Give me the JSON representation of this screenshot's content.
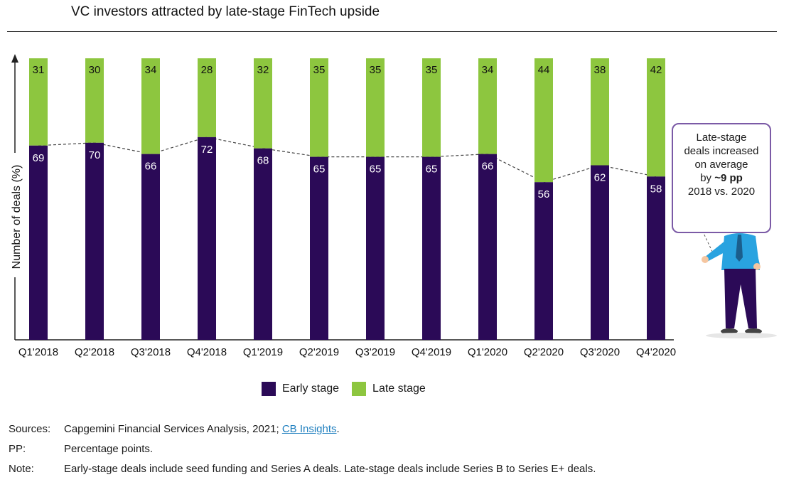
{
  "title": "VC investors attracted by late-stage FinTech upside",
  "chart_data": {
    "type": "bar",
    "stacked": true,
    "categories": [
      "Q1'2018",
      "Q2'2018",
      "Q3'2018",
      "Q4'2018",
      "Q1'2019",
      "Q2'2019",
      "Q3'2019",
      "Q4'2019",
      "Q1'2020",
      "Q2'2020",
      "Q3'2020",
      "Q4'2020"
    ],
    "series": [
      {
        "name": "Early stage",
        "color": "#2b0a57",
        "values": [
          69,
          70,
          66,
          72,
          68,
          65,
          65,
          65,
          66,
          56,
          62,
          58
        ]
      },
      {
        "name": "Late stage",
        "color": "#8dc63f",
        "values": [
          31,
          30,
          34,
          28,
          32,
          35,
          35,
          35,
          34,
          44,
          38,
          42
        ]
      }
    ],
    "ylabel": "Number of deals (%)",
    "ylim": [
      0,
      100
    ],
    "legend_position": "bottom",
    "trend_line": "dashed line connecting top of Early stage segments"
  },
  "legend": {
    "early": "Early stage",
    "late": "Late stage"
  },
  "callout": {
    "line1": "Late-stage",
    "line2": "deals increased",
    "line3": "on average",
    "line4_prefix": "by ",
    "line4_bold": "~9 pp",
    "line5": "2018 vs. 2020"
  },
  "notes": {
    "sources_key": "Sources:",
    "sources_text": "Capgemini Financial Services Analysis, 2021; ",
    "sources_link": "CB Insights",
    "sources_end": ".",
    "pp_key": "PP:",
    "pp_text": "Percentage points.",
    "note_key": "Note:",
    "note_text": "Early-stage deals include seed funding and Series A deals. Late-stage deals include Series B to Series E+ deals."
  }
}
